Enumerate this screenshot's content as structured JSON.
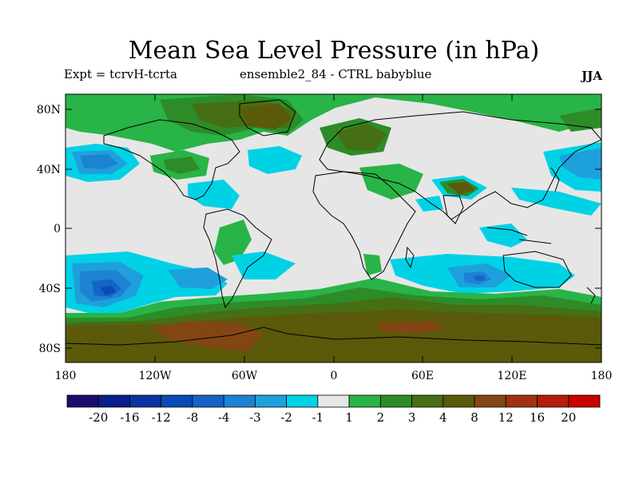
{
  "title": "Mean Sea Level Pressure (in hPa)",
  "expt": "Expt = tcrvH-tcrta",
  "ensemble": "ensemble2_84 - CTRL babyblue",
  "season": "JJA",
  "lat_ticks": [
    "80N",
    "40N",
    "0",
    "40S",
    "80S"
  ],
  "lon_ticks": [
    "180",
    "120W",
    "60W",
    "0",
    "60E",
    "120E",
    "180"
  ],
  "colorbar": {
    "labels": [
      "-20",
      "-16",
      "-12",
      "-8",
      "-4",
      "-3",
      "-2",
      "-1",
      "1",
      "2",
      "3",
      "4",
      "8",
      "12",
      "16",
      "20"
    ],
    "colors": [
      "#1e0a6e",
      "#0a1e8c",
      "#0a32a0",
      "#0a4ab4",
      "#1464c8",
      "#1e82d2",
      "#1ea0dc",
      "#00d2e6",
      "#e6e6e6",
      "#28b446",
      "#2d8c28",
      "#466e14",
      "#5a5a0a",
      "#824614",
      "#a03214",
      "#b41e0a",
      "#c80000"
    ]
  }
}
